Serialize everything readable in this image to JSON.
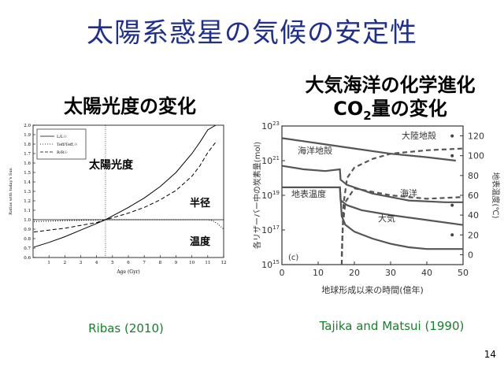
{
  "title": "太陽系惑星の気候の安定性",
  "left_heading": "太陽光度の変化",
  "right_heading_line1": "大気海洋の化学進化",
  "right_heading_co": "CO",
  "right_heading_sub": "2",
  "right_heading_rest": "量の変化",
  "left_caption": "Ribas (2010)",
  "right_caption": "Tajika and Matsui (1990)",
  "page_number": "14",
  "chart_data": [
    {
      "type": "line",
      "title": "太陽光度の変化",
      "xlabel": "Age (Gyr)",
      "ylabel": "Ratios with today's Sun",
      "xlim": [
        0,
        12
      ],
      "ylim": [
        0.6,
        2.0
      ],
      "x_ticks": [
        "1",
        "2",
        "3",
        "4",
        "5",
        "6",
        "7",
        "8",
        "9",
        "10",
        "11",
        "12"
      ],
      "y_ticks": [
        "0.6",
        "0.7",
        "0.8",
        "0.9",
        "1.0",
        "1.1",
        "1.2",
        "1.3",
        "1.4",
        "1.5",
        "1.6",
        "1.7",
        "1.8",
        "1.9",
        "2.0"
      ],
      "present_age": 4.56,
      "legend": [
        "L/L☉",
        "Teff/Teff,☉",
        "R/R☉"
      ],
      "labels": {
        "luminosity": "太陽光度",
        "radius": "半径",
        "temperature": "温度"
      },
      "series": [
        {
          "name": "L/L☉",
          "style": "solid",
          "x": [
            0.05,
            1,
            2,
            3,
            4,
            4.56,
            5,
            6,
            7,
            8,
            9,
            10,
            10.5,
            11,
            11.5
          ],
          "y": [
            0.71,
            0.76,
            0.82,
            0.89,
            0.96,
            1.0,
            1.04,
            1.13,
            1.23,
            1.35,
            1.5,
            1.7,
            1.82,
            1.95,
            2.0
          ]
        },
        {
          "name": "Teff/Teff,☉",
          "style": "dotted",
          "x": [
            0.05,
            2,
            4.56,
            6,
            8,
            10,
            11,
            11.3,
            11.6,
            11.8,
            12
          ],
          "y": [
            0.98,
            0.99,
            1.0,
            1.0,
            1.0,
            1.0,
            1.0,
            0.99,
            0.96,
            0.93,
            0.9
          ]
        },
        {
          "name": "R/R☉",
          "style": "dashed",
          "x": [
            0.05,
            1,
            2,
            3,
            4,
            4.56,
            5,
            6,
            7,
            8,
            9,
            10,
            10.5,
            11,
            11.5
          ],
          "y": [
            0.87,
            0.89,
            0.91,
            0.94,
            0.97,
            1.0,
            1.02,
            1.07,
            1.13,
            1.21,
            1.31,
            1.46,
            1.57,
            1.71,
            1.82
          ]
        }
      ]
    },
    {
      "type": "line",
      "title": "CO2量の変化",
      "xlabel": "地球形成以来の時間(億年)",
      "ylabel": "各リザーバー中の炭素量(mol)",
      "ylabel_right": "地表温度(℃)",
      "panel_label": "(c)",
      "xlim": [
        0,
        50
      ],
      "ylim_exponent": [
        15,
        23
      ],
      "ylim_right": [
        -10,
        130
      ],
      "x_ticks": [
        "0",
        "10",
        "20",
        "30",
        "40",
        "50"
      ],
      "y_ticks_base": "10",
      "y_ticks_exp": [
        "15",
        "17",
        "19",
        "21",
        "23"
      ],
      "y_ticks_right": [
        "0",
        "20",
        "40",
        "60",
        "80",
        "100",
        "120"
      ],
      "series": [
        {
          "name": "大陸地殻",
          "style": "solid",
          "axis": "left-log",
          "x": [
            0,
            10,
            20,
            30,
            40,
            48
          ],
          "y": [
            22.3,
            22.0,
            21.7,
            21.4,
            21.2,
            21.0
          ]
        },
        {
          "name": "海洋地殻",
          "style": "solid",
          "axis": "left-log",
          "x": [
            0,
            6,
            12,
            16,
            16.2,
            18,
            25,
            35,
            45,
            50
          ],
          "y": [
            20.7,
            20.5,
            20.4,
            20.5,
            19.9,
            19.6,
            19.1,
            18.7,
            18.6,
            18.6
          ]
        },
        {
          "name": "海洋",
          "style": "dashed",
          "axis": "left-log",
          "x": [
            16.5,
            16.8,
            17.5,
            20,
            25,
            30,
            40,
            50
          ],
          "y": [
            15.0,
            17.2,
            18.6,
            19.4,
            19.2,
            19.0,
            18.8,
            18.9
          ]
        },
        {
          "name": "大気",
          "style": "solid",
          "axis": "left-log",
          "x": [
            16,
            16.5,
            17.5,
            20,
            25,
            30,
            35,
            40,
            45,
            50
          ],
          "y": [
            19.5,
            17.8,
            17.3,
            16.9,
            16.5,
            16.2,
            16.0,
            15.9,
            15.9,
            15.9
          ]
        },
        {
          "name": "大陸地殻 (dashed)",
          "style": "dashed",
          "axis": "left-log",
          "x": [
            16.5,
            17,
            18,
            20,
            25,
            30,
            40,
            50
          ],
          "y": [
            15.5,
            18.5,
            20.0,
            20.6,
            21.1,
            21.4,
            21.6,
            21.7
          ]
        },
        {
          "name": "地表温度",
          "style": "solid",
          "axis": "right-temp",
          "x": [
            0,
            16,
            16.2,
            18,
            22,
            30,
            40,
            50
          ],
          "y": [
            68,
            68,
            55,
            50,
            45,
            40,
            35,
            30
          ]
        }
      ],
      "annotations": [
        "海洋地殻",
        "大陸地殻",
        "地表温度",
        "海洋",
        "大気"
      ]
    }
  ]
}
